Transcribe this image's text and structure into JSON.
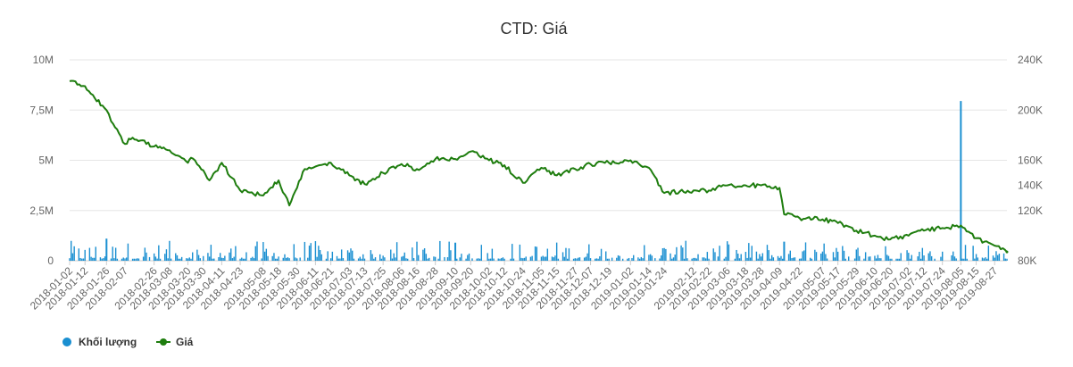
{
  "chart_data": {
    "type": "line",
    "title": "CTD: Giá",
    "legend": {
      "position": "bottom-left",
      "items": [
        {
          "name": "Khối lượng",
          "color": "#1a8fd1",
          "marker": "circle"
        },
        {
          "name": "Giá",
          "color": "#1e7d0e",
          "marker": "line-dot"
        }
      ]
    },
    "grid": true,
    "x_tick_labels": [
      "2018-01-02",
      "2018-01-12",
      "2018-01-26",
      "2018-02-07",
      "2018-02-26",
      "2018-03-08",
      "2018-03-20",
      "2018-03-30",
      "2018-04-11",
      "2018-04-23",
      "2018-05-08",
      "2018-05-18",
      "2018-05-30",
      "2018-06-11",
      "2018-06-21",
      "2018-07-03",
      "2018-07-13",
      "2018-07-25",
      "2018-08-06",
      "2018-08-16",
      "2018-08-28",
      "2018-09-10",
      "2018-09-20",
      "2018-10-02",
      "2018-10-12",
      "2018-10-24",
      "2018-11-05",
      "2018-11-15",
      "2018-11-27",
      "2018-12-07",
      "2018-12-19",
      "2019-01-02",
      "2019-01-14",
      "2019-01-24",
      "2019-02-12",
      "2019-02-22",
      "2019-03-06",
      "2019-03-18",
      "2019-03-28",
      "2019-04-09",
      "2019-04-22",
      "2019-05-07",
      "2019-05-17",
      "2019-05-29",
      "2019-06-10",
      "2019-06-20",
      "2019-07-02",
      "2019-07-12",
      "2019-07-24",
      "2019-08-05",
      "2019-08-15",
      "2019-08-27"
    ],
    "y_left": {
      "ticks": [
        "0",
        "2,5M",
        "5M",
        "7,5M",
        "10M"
      ],
      "range": [
        0,
        10000000
      ]
    },
    "y_right": {
      "ticks": [
        "80K",
        "120K",
        "140K",
        "160K",
        "200K",
        "240K"
      ],
      "range": [
        80000,
        240000
      ]
    },
    "series": [
      {
        "name": "Giá",
        "axis": "right",
        "color": "#1e7d0e",
        "points": [
          [
            "2018-01-02",
            223000
          ],
          [
            "2018-01-12",
            219000
          ],
          [
            "2018-01-26",
            200000
          ],
          [
            "2018-01-29",
            191000
          ],
          [
            "2018-02-07",
            173000
          ],
          [
            "2018-02-12",
            178000
          ],
          [
            "2018-02-26",
            171000
          ],
          [
            "2018-03-08",
            168000
          ],
          [
            "2018-03-20",
            158000
          ],
          [
            "2018-03-22",
            162000
          ],
          [
            "2018-03-30",
            152000
          ],
          [
            "2018-04-03",
            144000
          ],
          [
            "2018-04-11",
            158000
          ],
          [
            "2018-04-23",
            136000
          ],
          [
            "2018-05-08",
            132000
          ],
          [
            "2018-05-18",
            144000
          ],
          [
            "2018-05-25",
            124000
          ],
          [
            "2018-05-30",
            138000
          ],
          [
            "2018-06-04",
            153000
          ],
          [
            "2018-06-11",
            155000
          ],
          [
            "2018-06-21",
            158000
          ],
          [
            "2018-07-03",
            148000
          ],
          [
            "2018-07-13",
            141000
          ],
          [
            "2018-07-25",
            150000
          ],
          [
            "2018-08-06",
            157000
          ],
          [
            "2018-08-16",
            153000
          ],
          [
            "2018-08-28",
            161000
          ],
          [
            "2018-09-10",
            161000
          ],
          [
            "2018-09-20",
            167000
          ],
          [
            "2018-10-02",
            160000
          ],
          [
            "2018-10-12",
            156000
          ],
          [
            "2018-10-24",
            142000
          ],
          [
            "2018-11-05",
            154000
          ],
          [
            "2018-11-15",
            148000
          ],
          [
            "2018-11-27",
            153000
          ],
          [
            "2018-12-07",
            157000
          ],
          [
            "2018-12-19",
            158000
          ],
          [
            "2019-01-02",
            160000
          ],
          [
            "2019-01-14",
            154000
          ],
          [
            "2019-01-24",
            134000
          ],
          [
            "2019-02-12",
            136000
          ],
          [
            "2019-02-22",
            136000
          ],
          [
            "2019-03-06",
            140000
          ],
          [
            "2019-03-18",
            140000
          ],
          [
            "2019-03-28",
            140000
          ],
          [
            "2019-04-09",
            138000
          ],
          [
            "2019-04-12",
            117000
          ],
          [
            "2019-04-22",
            114000
          ],
          [
            "2019-05-07",
            113000
          ],
          [
            "2019-05-17",
            110000
          ],
          [
            "2019-05-29",
            104000
          ],
          [
            "2019-06-10",
            100000
          ],
          [
            "2019-06-20",
            97000
          ],
          [
            "2019-07-02",
            100000
          ],
          [
            "2019-07-12",
            104000
          ],
          [
            "2019-07-24",
            106000
          ],
          [
            "2019-08-05",
            108000
          ],
          [
            "2019-08-15",
            98000
          ],
          [
            "2019-08-27",
            92000
          ],
          [
            "2019-09-04",
            87000
          ]
        ]
      },
      {
        "name": "Khối lượng",
        "axis": "left",
        "color": "#1a8fd1",
        "typical_range": [
          100000,
          1000000
        ],
        "spikes": [
          [
            "2019-08-05",
            7950000
          ],
          [
            "2018-01-26",
            1100000
          ],
          [
            "2018-09-10",
            900000
          ],
          [
            "2019-04-12",
            950000
          ]
        ]
      }
    ]
  }
}
